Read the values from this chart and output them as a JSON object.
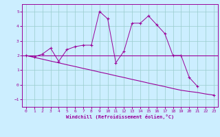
{
  "x_values": [
    0,
    1,
    2,
    3,
    4,
    5,
    6,
    7,
    8,
    9,
    10,
    11,
    12,
    13,
    14,
    15,
    16,
    17,
    18,
    19,
    20,
    21,
    22,
    23
  ],
  "y_data": [
    2.0,
    1.9,
    2.1,
    2.5,
    1.6,
    2.4,
    2.6,
    2.7,
    2.7,
    5.0,
    4.5,
    1.5,
    2.3,
    4.2,
    4.2,
    4.7,
    4.1,
    3.5,
    2.0,
    2.0,
    0.5,
    -0.1,
    null,
    -0.7
  ],
  "y_regression": [
    2.0,
    1.87,
    1.75,
    1.62,
    1.5,
    1.37,
    1.25,
    1.12,
    1.0,
    0.87,
    0.75,
    0.62,
    0.5,
    0.37,
    0.25,
    0.12,
    0.0,
    -0.12,
    -0.25,
    -0.37,
    -0.45,
    -0.52,
    -0.62,
    -0.7
  ],
  "line_color": "#990099",
  "bg_color": "#cceeff",
  "grid_color": "#99cccc",
  "xlabel": "Windchill (Refroidissement éolien,°C)",
  "ylim": [
    -1.5,
    5.5
  ],
  "xlim": [
    -0.5,
    23.5
  ],
  "yticks": [
    -1,
    0,
    1,
    2,
    3,
    4,
    5
  ],
  "xticks": [
    0,
    1,
    2,
    3,
    4,
    5,
    6,
    7,
    8,
    9,
    10,
    11,
    12,
    13,
    14,
    15,
    16,
    17,
    18,
    19,
    20,
    21,
    22,
    23
  ],
  "hline_y": 2.0
}
